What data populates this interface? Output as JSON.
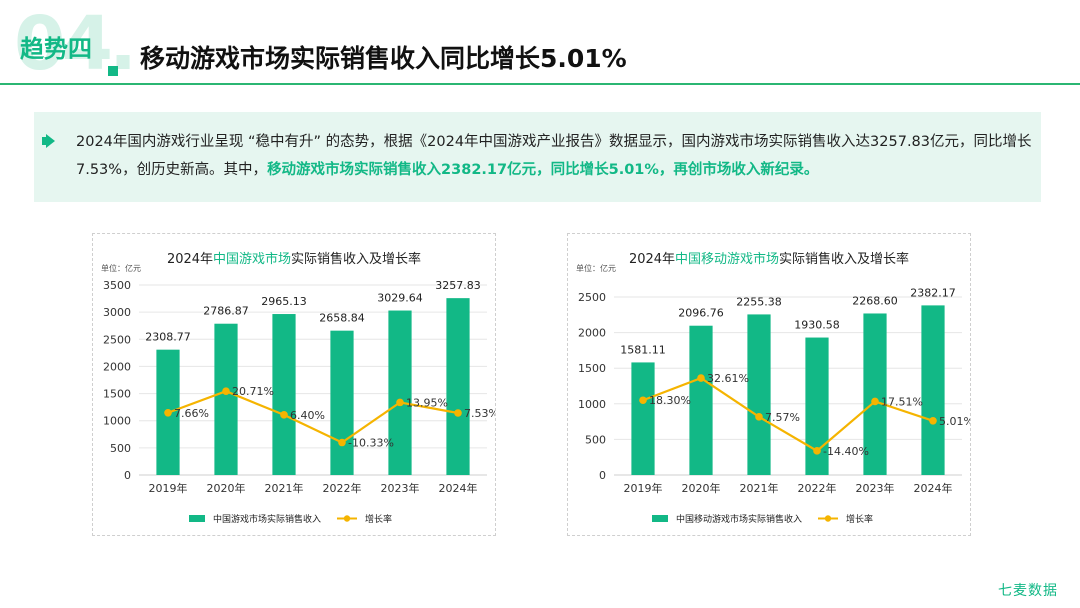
{
  "header": {
    "big_number": "04.",
    "trend_label": "趋势四",
    "title": "移动游戏市场实际销售收入同比增长5.01%"
  },
  "summary": {
    "text_plain_1": "2024年国内游戏行业呈现 “稳中有升” 的态势，根据《2024年中国游戏产业报告》数据显示，国内游戏市场实际销售收入达3257.83亿元，同比增长7.53%，创历史新高。其中，",
    "text_highlight": "移动游戏市场实际销售收入2382.17亿元，同比增长5.01%，再创市场收入新纪录。"
  },
  "colors": {
    "bar": "#12b886",
    "line": "#f5b400",
    "accent": "#12b886",
    "title_highlight": "#12b886"
  },
  "brand": "七麦数据",
  "chart_data": [
    {
      "type": "bar",
      "title_prefix": "2024年",
      "title_highlight": "中国游戏市场",
      "title_suffix": "实际销售收入及增长率",
      "unit": "单位：亿元",
      "categories": [
        "2019年",
        "2020年",
        "2021年",
        "2022年",
        "2023年",
        "2024年"
      ],
      "series": [
        {
          "name": "中国游戏市场实际销售收入",
          "type": "bar",
          "values": [
            2308.77,
            2786.87,
            2965.13,
            2658.84,
            3029.64,
            3257.83
          ],
          "labels": [
            "2308.77",
            "2786.87",
            "2965.13",
            "2658.84",
            "3029.64",
            "3257.83"
          ]
        },
        {
          "name": "增长率",
          "type": "line",
          "values": [
            7.66,
            20.71,
            6.4,
            -10.33,
            13.95,
            7.53
          ],
          "labels": [
            "7.66%",
            "20.71%",
            "6.40%",
            "-10.33%",
            "13.95%",
            "7.53%"
          ]
        }
      ],
      "ylim": [
        0,
        3500
      ],
      "yticks": [
        0,
        500,
        1000,
        1500,
        2000,
        2500,
        3000,
        3500
      ],
      "grid": true,
      "legend": "bottom"
    },
    {
      "type": "bar",
      "title_prefix": "2024年",
      "title_highlight": "中国移动游戏市场",
      "title_suffix": "实际销售收入及增长率",
      "unit": "单位：亿元",
      "categories": [
        "2019年",
        "2020年",
        "2021年",
        "2022年",
        "2023年",
        "2024年"
      ],
      "series": [
        {
          "name": "中国移动游戏市场实际销售收入",
          "type": "bar",
          "values": [
            1581.11,
            2096.76,
            2255.38,
            1930.58,
            2268.6,
            2382.17
          ],
          "labels": [
            "1581.11",
            "2096.76",
            "2255.38",
            "1930.58",
            "2268.60",
            "2382.17"
          ]
        },
        {
          "name": "增长率",
          "type": "line",
          "values": [
            18.3,
            32.61,
            7.57,
            -14.4,
            17.51,
            5.01
          ],
          "labels": [
            "18.30%",
            "32.61%",
            "7.57%",
            "-14.40%",
            "17.51%",
            "5.01%"
          ]
        }
      ],
      "ylim": [
        0,
        2500
      ],
      "yticks": [
        0,
        500,
        1000,
        1500,
        2000,
        2500
      ],
      "grid": true,
      "legend": "bottom"
    }
  ]
}
